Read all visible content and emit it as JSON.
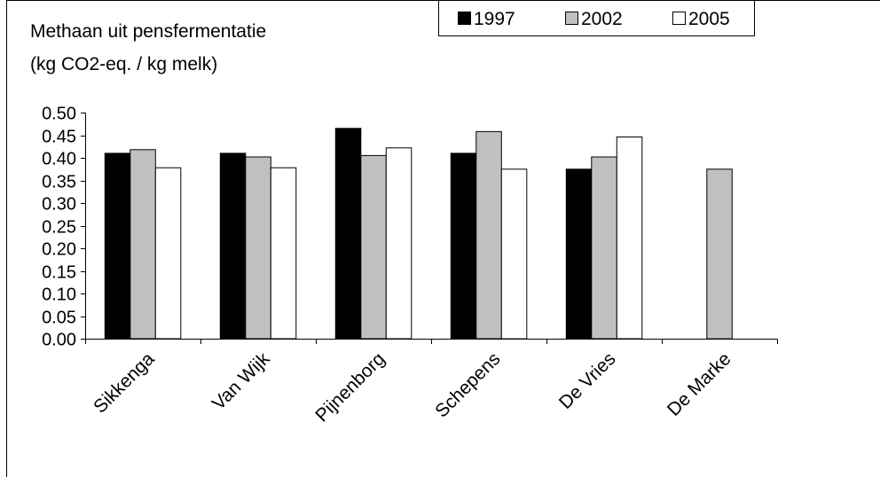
{
  "chart_data": {
    "type": "bar",
    "title": "Methaan uit pensfermentatie",
    "subtitle": "(kg CO2-eq. / kg melk)",
    "xlabel": "",
    "ylabel": "",
    "categories": [
      "Sikkenga",
      "Van Wijk",
      "Pijnenborg",
      "Schepens",
      "De Vries",
      "De Marke"
    ],
    "series": [
      {
        "name": "1997",
        "values": [
          0.41,
          0.41,
          0.465,
          0.41,
          0.375,
          null
        ]
      },
      {
        "name": "2002",
        "values": [
          0.418,
          0.402,
          0.405,
          0.458,
          0.402,
          0.375
        ]
      },
      {
        "name": "2005",
        "values": [
          0.378,
          0.378,
          0.422,
          0.375,
          0.446,
          null
        ]
      }
    ],
    "ylim": [
      0,
      0.5
    ],
    "yticks": [
      "0.00",
      "0.05",
      "0.10",
      "0.15",
      "0.20",
      "0.25",
      "0.30",
      "0.35",
      "0.40",
      "0.45",
      "0.50"
    ],
    "grid": false,
    "legend_position": "top-right",
    "colors": {
      "1997": "#000000",
      "2002": "#c0c0c0",
      "2005": "#ffffff",
      "outline": "#000000"
    }
  }
}
